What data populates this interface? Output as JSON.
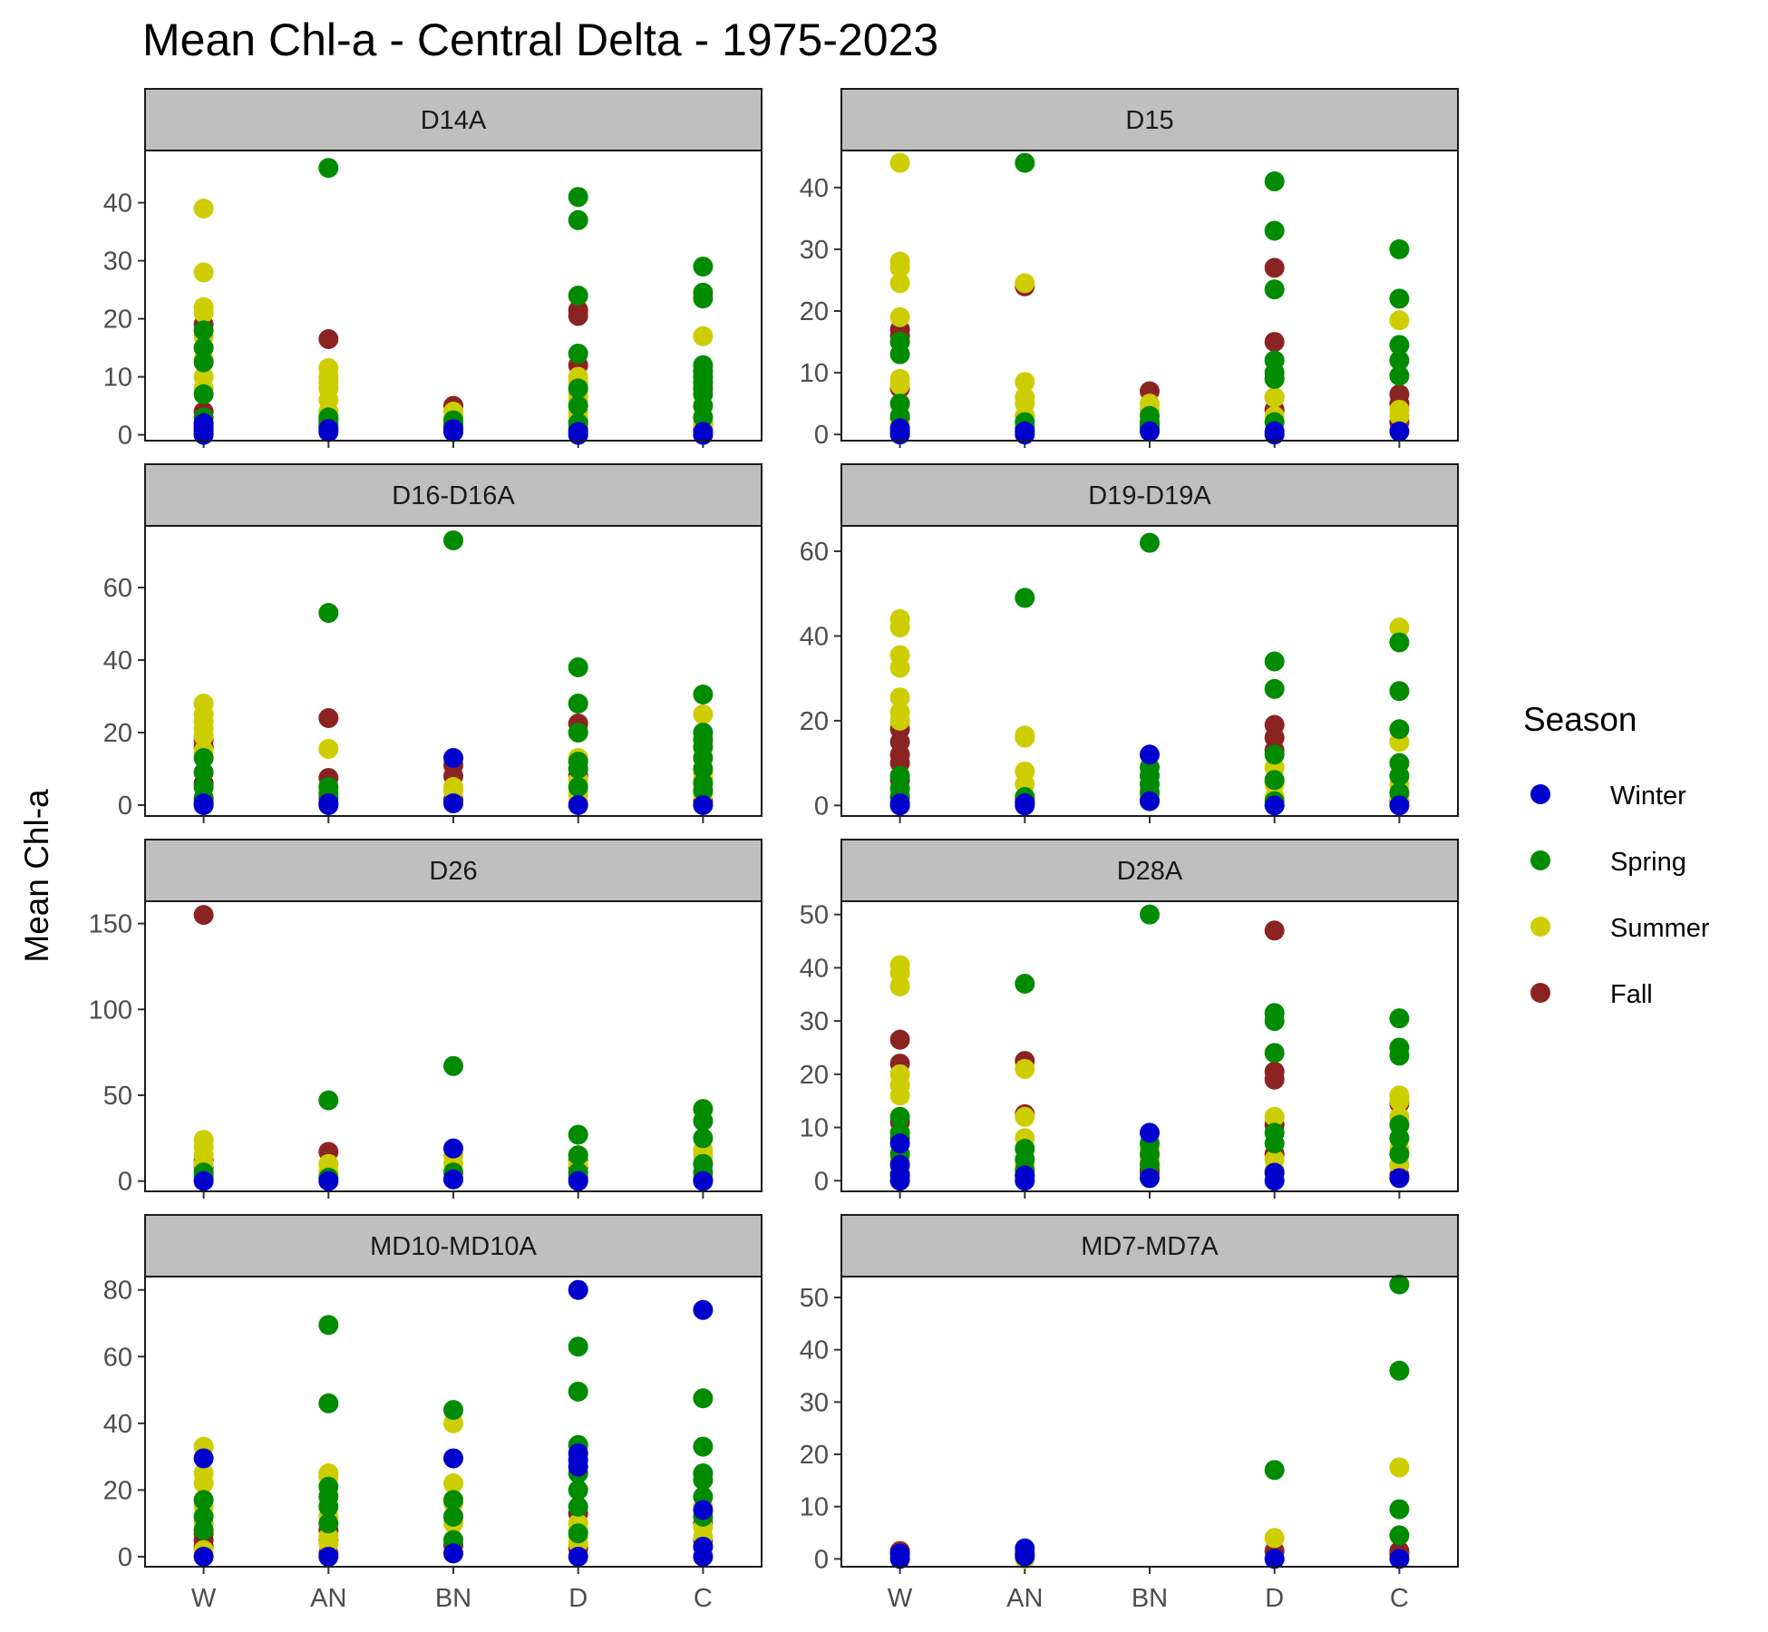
{
  "chart_data": {
    "type": "scatter",
    "title": "Mean Chl-a - Central Delta - 1975-2023",
    "ylabel": "Mean Chl-a",
    "xlabel": "",
    "categories": [
      "W",
      "AN",
      "BN",
      "D",
      "C"
    ],
    "legend": {
      "title": "Season",
      "placement": "right",
      "entries": [
        {
          "name": "Winter",
          "color": "#0000cc"
        },
        {
          "name": "Spring",
          "color": "#008b00"
        },
        {
          "name": "Summer",
          "color": "#cdcd00"
        },
        {
          "name": "Fall",
          "color": "#8b2323"
        }
      ]
    },
    "facets": [
      {
        "name": "D14A",
        "ylim": [
          -1,
          49
        ],
        "yticks": [
          0,
          10,
          20,
          30,
          40
        ],
        "points": {
          "W": {
            "Winter": [
              0,
              0.5,
              1,
              1.5,
              2
            ],
            "Spring": [
              3,
              7,
              12.5,
              15,
              18
            ],
            "Summer": [
              8,
              10,
              13,
              17,
              21,
              22,
              28,
              39
            ],
            "Fall": [
              1,
              2,
              4,
              19
            ]
          },
          "AN": {
            "Winter": [
              0.5,
              1
            ],
            "Spring": [
              2,
              3,
              46
            ],
            "Summer": [
              4,
              6,
              8,
              9,
              10,
              11.5
            ],
            "Fall": [
              1.5,
              2.5,
              16.5
            ]
          },
          "BN": {
            "Winter": [
              0.5,
              1
            ],
            "Spring": [
              1.5,
              2,
              2.5
            ],
            "Summer": [
              3,
              4
            ],
            "Fall": [
              5
            ]
          },
          "D": {
            "Winter": [
              0,
              0.5
            ],
            "Spring": [
              2,
              5,
              8,
              14,
              24,
              37,
              41
            ],
            "Summer": [
              3,
              4,
              6,
              7,
              9,
              10
            ],
            "Fall": [
              1,
              2.5,
              12,
              20.5,
              21.5
            ]
          },
          "C": {
            "Winter": [
              0,
              0.5
            ],
            "Spring": [
              3,
              5,
              7,
              8,
              9,
              10,
              11,
              12,
              23.5,
              24.5,
              29
            ],
            "Summer": [
              1.5,
              2,
              3,
              17
            ],
            "Fall": [
              1,
              1.5
            ]
          }
        }
      },
      {
        "name": "D15",
        "ylim": [
          -1,
          46
        ],
        "yticks": [
          0,
          10,
          20,
          30,
          40
        ],
        "points": {
          "W": {
            "Winter": [
              0,
              0.5,
              1
            ],
            "Spring": [
              3,
              5,
              13,
              15
            ],
            "Summer": [
              2,
              5,
              8,
              9,
              15,
              19,
              24.5,
              27,
              28,
              44
            ],
            "Fall": [
              2.5,
              7.5,
              16,
              17
            ]
          },
          "AN": {
            "Winter": [
              0,
              0.5
            ],
            "Spring": [
              1,
              2,
              44
            ],
            "Summer": [
              3,
              5,
              6,
              8.5,
              24.5
            ],
            "Fall": [
              3,
              24
            ]
          },
          "BN": {
            "Winter": [
              0.5
            ],
            "Spring": [
              1,
              1.5,
              2,
              3
            ],
            "Summer": [
              4,
              5
            ],
            "Fall": [
              7
            ]
          },
          "D": {
            "Winter": [
              0,
              0.5
            ],
            "Spring": [
              2,
              9,
              10,
              12,
              23.5,
              33,
              41
            ],
            "Summer": [
              3,
              6,
              9
            ],
            "Fall": [
              4,
              6,
              15,
              27
            ]
          },
          "C": {
            "Winter": [
              0.5
            ],
            "Spring": [
              9.5,
              12,
              14.5,
              22,
              30
            ],
            "Summer": [
              3,
              4,
              18.5
            ],
            "Fall": [
              2,
              5,
              6.5
            ]
          }
        }
      },
      {
        "name": "D16-D16A",
        "ylim": [
          -3,
          77
        ],
        "yticks": [
          0,
          20,
          40,
          60
        ],
        "points": {
          "W": {
            "Winter": [
              0,
              0.5
            ],
            "Spring": [
              2,
              5,
              9,
              13
            ],
            "Summer": [
              15,
              19,
              21,
              23,
              25,
              28
            ],
            "Fall": [
              1.5,
              6,
              16,
              18
            ]
          },
          "AN": {
            "Winter": [
              0,
              0.5
            ],
            "Spring": [
              3,
              5,
              53
            ],
            "Summer": [
              4,
              15.5
            ],
            "Fall": [
              2,
              7.5,
              24
            ]
          },
          "BN": {
            "Winter": [
              0.5,
              13
            ],
            "Spring": [
              73
            ],
            "Summer": [
              4,
              5
            ],
            "Fall": [
              1.5,
              8,
              11
            ]
          },
          "D": {
            "Winter": [
              0
            ],
            "Spring": [
              5,
              10,
              12,
              20,
              28,
              38
            ],
            "Summer": [
              1,
              3,
              7,
              13
            ],
            "Fall": [
              8,
              22.5
            ]
          },
          "C": {
            "Winter": [
              0
            ],
            "Spring": [
              4,
              6,
              10,
              13,
              16,
              18,
              20,
              30.5
            ],
            "Summer": [
              3,
              7,
              9,
              25
            ],
            "Fall": [
              1
            ]
          }
        }
      },
      {
        "name": "D19-D19A",
        "ylim": [
          -2.5,
          66
        ],
        "yticks": [
          0,
          20,
          40,
          60
        ],
        "points": {
          "W": {
            "Winter": [
              0,
              0.5
            ],
            "Spring": [
              2,
              4,
              7
            ],
            "Summer": [
              20,
              22,
              25.5,
              32.5,
              35.5,
              42,
              44
            ],
            "Fall": [
              2,
              6,
              10,
              12,
              15,
              18
            ]
          },
          "AN": {
            "Winter": [
              0,
              0.5
            ],
            "Spring": [
              2,
              49
            ],
            "Summer": [
              5,
              8,
              16,
              16.5
            ],
            "Fall": [
              1,
              1.5
            ]
          },
          "BN": {
            "Winter": [
              1,
              12
            ],
            "Spring": [
              3,
              5,
              7,
              9,
              62
            ],
            "Summer": [
              2,
              3.5
            ],
            "Fall": [
              1.5
            ]
          },
          "D": {
            "Winter": [
              0
            ],
            "Spring": [
              1,
              6,
              12,
              27.5,
              34
            ],
            "Summer": [
              2,
              5,
              9
            ],
            "Fall": [
              5.5,
              13,
              16,
              19
            ]
          },
          "C": {
            "Winter": [
              0
            ],
            "Spring": [
              3,
              7,
              10,
              18,
              27,
              38.5
            ],
            "Summer": [
              2,
              5,
              15,
              42
            ],
            "Fall": [
              1
            ]
          }
        }
      },
      {
        "name": "D26",
        "ylim": [
          -6,
          163
        ],
        "yticks": [
          0,
          50,
          100,
          150
        ],
        "points": {
          "W": {
            "Winter": [
              0
            ],
            "Spring": [
              3,
              5
            ],
            "Summer": [
              10,
              15,
              20,
              24
            ],
            "Fall": [
              1,
              8,
              12,
              155
            ]
          },
          "AN": {
            "Winter": [
              0
            ],
            "Spring": [
              2,
              47
            ],
            "Summer": [
              5,
              10
            ],
            "Fall": [
              1.5,
              17
            ]
          },
          "BN": {
            "Winter": [
              1,
              19
            ],
            "Spring": [
              5,
              67
            ],
            "Summer": [
              10,
              15
            ],
            "Fall": [
              1
            ]
          },
          "D": {
            "Winter": [
              0
            ],
            "Spring": [
              5,
              15,
              27
            ],
            "Summer": [
              10,
              15
            ],
            "Fall": [
              2,
              8,
              12
            ]
          },
          "C": {
            "Winter": [
              0
            ],
            "Spring": [
              5,
              10,
              25,
              35,
              42
            ],
            "Summer": [
              10,
              15,
              18
            ],
            "Fall": [
              1
            ]
          }
        }
      },
      {
        "name": "D28A",
        "ylim": [
          -2,
          52.5
        ],
        "yticks": [
          0,
          10,
          20,
          30,
          40,
          50
        ],
        "points": {
          "W": {
            "Winter": [
              0,
              1,
              3,
              7
            ],
            "Spring": [
              5,
              8,
              9,
              12
            ],
            "Summer": [
              2,
              4,
              5,
              16,
              18,
              20,
              36.5,
              39,
              40.5
            ],
            "Fall": [
              1.5,
              11,
              22,
              26.5
            ]
          },
          "AN": {
            "Winter": [
              0,
              1
            ],
            "Spring": [
              2,
              4,
              6,
              37
            ],
            "Summer": [
              3,
              8,
              12,
              21
            ],
            "Fall": [
              1,
              12.5,
              22.5
            ]
          },
          "BN": {
            "Winter": [
              0.5,
              9
            ],
            "Spring": [
              3,
              5,
              7,
              50
            ],
            "Summer": [
              4,
              6
            ],
            "Fall": [
              1.5,
              2
            ]
          },
          "D": {
            "Winter": [
              0,
              1.5
            ],
            "Spring": [
              7,
              9,
              24,
              30,
              31.5
            ],
            "Summer": [
              2,
              4,
              12
            ],
            "Fall": [
              5,
              10.5,
              19,
              20.5,
              47
            ]
          },
          "C": {
            "Winter": [
              0.5
            ],
            "Spring": [
              5,
              8,
              10.5,
              23.5,
              25,
              30.5
            ],
            "Summer": [
              3,
              6,
              8,
              12,
              15,
              16
            ],
            "Fall": [
              1,
              14.5
            ]
          }
        }
      },
      {
        "name": "MD10-MD10A",
        "ylim": [
          -3,
          84
        ],
        "yticks": [
          0,
          20,
          40,
          60,
          80
        ],
        "points": {
          "W": {
            "Winter": [
              0,
              29.5
            ],
            "Spring": [
              8,
              12,
              17
            ],
            "Summer": [
              2,
              10,
              15,
              22,
              25,
              33
            ],
            "Fall": [
              3,
              5,
              7
            ]
          },
          "AN": {
            "Winter": [
              0
            ],
            "Spring": [
              10,
              15,
              18,
              21,
              46,
              69.5
            ],
            "Summer": [
              4,
              6,
              12,
              24,
              25
            ],
            "Fall": [
              1,
              5,
              8
            ]
          },
          "BN": {
            "Winter": [
              1,
              29.5
            ],
            "Spring": [
              5,
              12,
              17,
              44
            ],
            "Summer": [
              10,
              16,
              22,
              40
            ],
            "Fall": [
              3.5,
              12
            ]
          },
          "D": {
            "Winter": [
              0,
              27,
              29,
              31,
              80
            ],
            "Spring": [
              7,
              15,
              20,
              25,
              33.5,
              49.5,
              63
            ],
            "Summer": [
              4,
              6,
              8,
              10
            ],
            "Fall": [
              2.5,
              13
            ]
          },
          "C": {
            "Winter": [
              0,
              3,
              14,
              74
            ],
            "Spring": [
              12,
              18,
              23,
              25,
              33,
              47.5
            ],
            "Summer": [
              3,
              6,
              9,
              15
            ],
            "Fall": [
              5,
              10
            ]
          }
        }
      },
      {
        "name": "MD7-MD7A",
        "ylim": [
          -1.5,
          54
        ],
        "yticks": [
          0,
          10,
          20,
          30,
          40,
          50
        ],
        "points": {
          "W": {
            "Winter": [
              0,
              1
            ],
            "Spring": [],
            "Summer": [
              0.5
            ],
            "Fall": [
              1.5
            ]
          },
          "AN": {
            "Winter": [
              0.5,
              2
            ],
            "Spring": [
              1
            ],
            "Summer": [
              0
            ],
            "Fall": [
              1
            ]
          },
          "BN": {
            "Winter": [],
            "Spring": [],
            "Summer": [],
            "Fall": []
          },
          "D": {
            "Winter": [
              0
            ],
            "Spring": [
              17
            ],
            "Summer": [
              4
            ],
            "Fall": [
              1.5
            ]
          },
          "C": {
            "Winter": [
              0
            ],
            "Spring": [
              4.5,
              9.5,
              36,
              52.5
            ],
            "Summer": [
              17.5
            ],
            "Fall": [
              1.5,
              1
            ]
          }
        }
      }
    ]
  }
}
